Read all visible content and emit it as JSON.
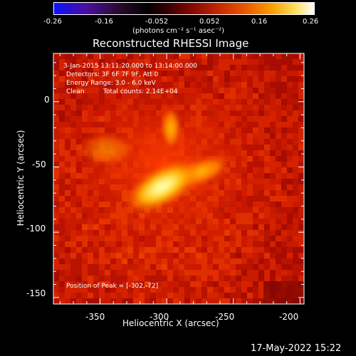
{
  "colorbar": {
    "ticks": [
      "-0.26",
      "-0.16",
      "-0.052",
      "0.052",
      "0.16",
      "0.26"
    ],
    "unit_label": "(photons cm⁻² s⁻¹ asec⁻²)"
  },
  "chart_data": {
    "type": "heatmap",
    "title": "Reconstructed RHESSI Image",
    "xlabel": "Heliocentric X (arcsec)",
    "ylabel": "Heliocentric Y (arcsec)",
    "xlim": [
      -385,
      -197
    ],
    "ylim": [
      -155,
      37
    ],
    "x_ticks": [
      "-350",
      "-300",
      "-250",
      "-200"
    ],
    "y_ticks": [
      "0",
      "-50",
      "-100",
      "-150"
    ],
    "annotations": {
      "time": "3-Jan-2015 13:11:20.000 to 13:14:00.000",
      "detectors": "Detectors: 3F 6F 7F 9F, Att 0",
      "energy": "Energy Range: 3.0 - 6.0 keV",
      "method": "Clean",
      "counts": "Total counts: 2.14E+04",
      "peak": "Position of Peak = [-302,-72]"
    },
    "peak": [
      -302,
      -72
    ]
  },
  "footer": {
    "timestamp": "17-May-2022 15:22"
  }
}
